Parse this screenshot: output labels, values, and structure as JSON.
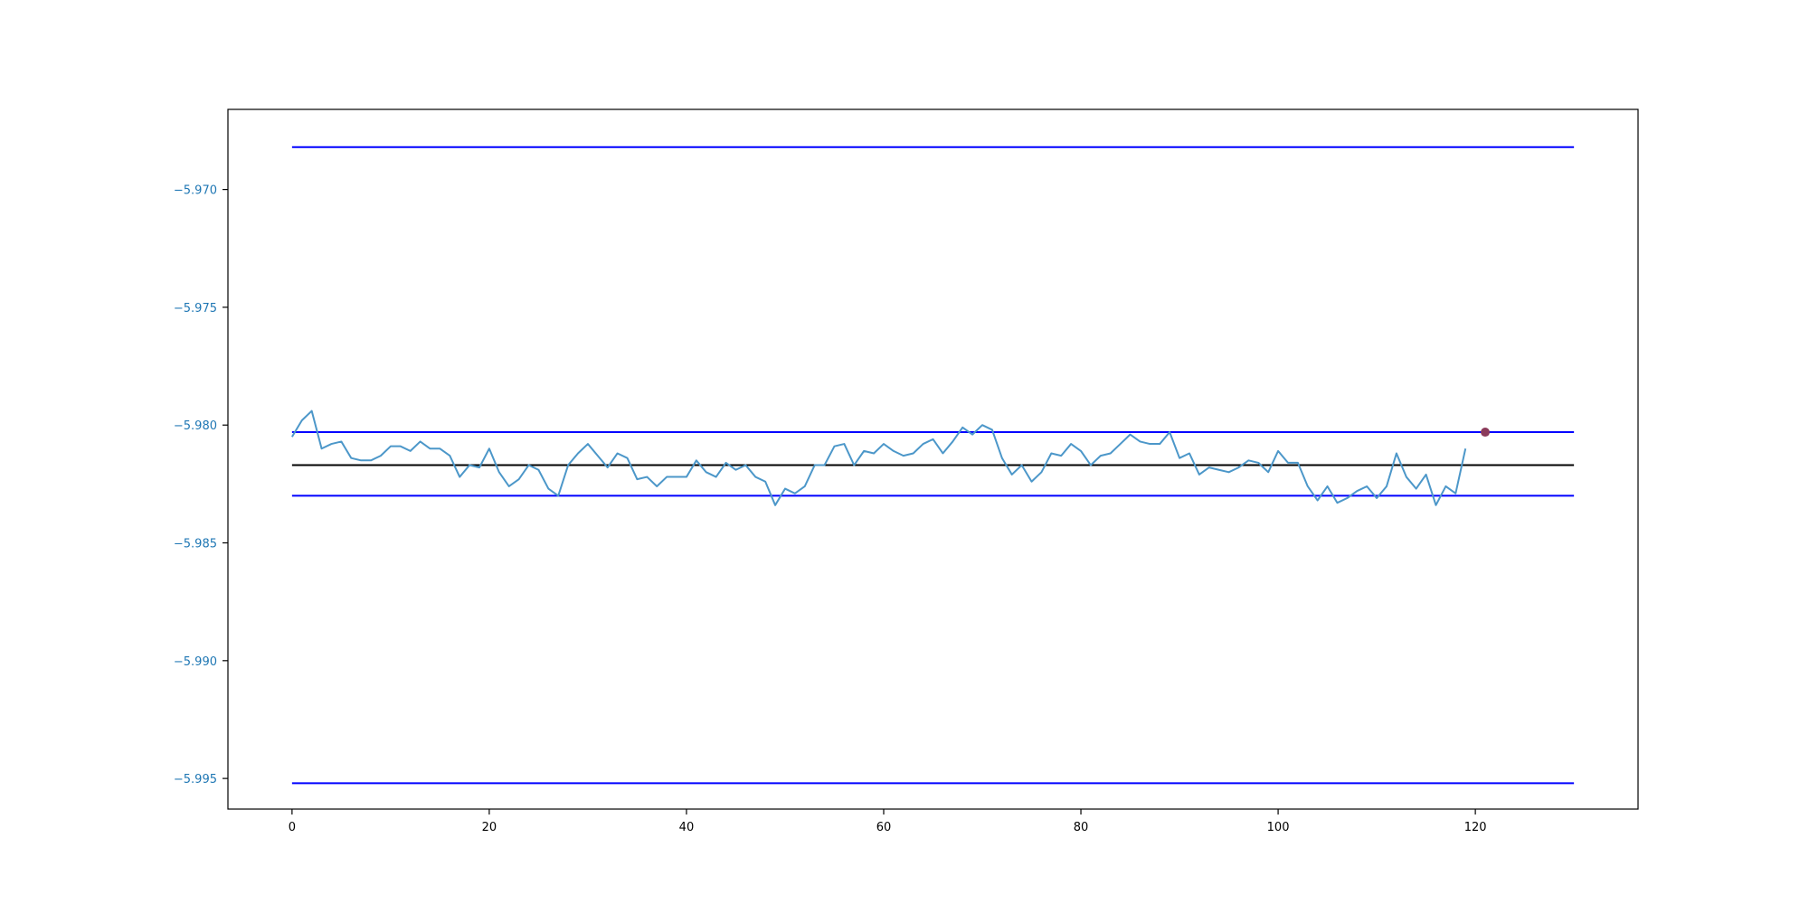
{
  "chart_data": {
    "type": "line",
    "title": "",
    "xlabel": "",
    "ylabel": "",
    "xlim": [
      -6.5,
      136.5
    ],
    "ylim": [
      -5.9963,
      -5.9666
    ],
    "x_ticks": [
      0,
      20,
      40,
      60,
      80,
      100,
      120
    ],
    "x_tick_labels": [
      "0",
      "20",
      "40",
      "60",
      "80",
      "100",
      "120"
    ],
    "y_ticks": [
      -5.97,
      -5.975,
      -5.98,
      -5.985,
      -5.99,
      -5.995
    ],
    "y_tick_labels": [
      "−5.970",
      "−5.975",
      "−5.980",
      "−5.985",
      "−5.990",
      "−5.995"
    ],
    "grid": false,
    "legend": "none",
    "colors": {
      "series": "#4c97c9",
      "limit_lines": "#0000ff",
      "center_line": "#000000",
      "marker": "#8b3a5a",
      "y_tick_text": "#1f77b4",
      "x_tick_text": "#000000"
    },
    "series": [
      {
        "x": [
          0,
          1,
          2,
          3,
          4,
          5,
          6,
          7,
          8,
          9,
          10,
          11,
          12,
          13,
          14,
          15,
          16,
          17,
          18,
          19,
          20,
          21,
          22,
          23,
          24,
          25,
          26,
          27,
          28,
          29,
          30,
          31,
          32,
          33,
          34,
          35,
          36,
          37,
          38,
          39,
          40,
          41,
          42,
          43,
          44,
          45,
          46,
          47,
          48,
          49,
          50,
          51,
          52,
          53,
          54,
          55,
          56,
          57,
          58,
          59,
          60,
          61,
          62,
          63,
          64,
          65,
          66,
          67,
          68,
          69,
          70,
          71,
          72,
          73,
          74,
          75,
          76,
          77,
          78,
          79,
          80,
          81,
          82,
          83,
          84,
          85,
          86,
          87,
          88,
          89,
          90,
          91,
          92,
          93,
          94,
          95,
          96,
          97,
          98,
          99,
          100,
          101,
          102,
          103,
          104,
          105,
          106,
          107,
          108,
          109,
          110,
          111,
          112,
          113,
          114,
          115,
          116,
          117,
          118,
          119
        ],
        "values": [
          -5.9805,
          -5.9798,
          -5.9794,
          -5.981,
          -5.9808,
          -5.9807,
          -5.9814,
          -5.9815,
          -5.9815,
          -5.9813,
          -5.9809,
          -5.9809,
          -5.9811,
          -5.9807,
          -5.981,
          -5.981,
          -5.9813,
          -5.9822,
          -5.9817,
          -5.9818,
          -5.981,
          -5.982,
          -5.9826,
          -5.9823,
          -5.9817,
          -5.9819,
          -5.9827,
          -5.983,
          -5.9817,
          -5.9812,
          -5.9808,
          -5.9813,
          -5.9818,
          -5.9812,
          -5.9814,
          -5.9823,
          -5.9822,
          -5.9826,
          -5.9822,
          -5.9822,
          -5.9822,
          -5.9815,
          -5.982,
          -5.9822,
          -5.9816,
          -5.9819,
          -5.9817,
          -5.9822,
          -5.9824,
          -5.9834,
          -5.9827,
          -5.9829,
          -5.9826,
          -5.9817,
          -5.9817,
          -5.9809,
          -5.9808,
          -5.9817,
          -5.9811,
          -5.9812,
          -5.9808,
          -5.9811,
          -5.9813,
          -5.9812,
          -5.9808,
          -5.9806,
          -5.9812,
          -5.9807,
          -5.9801,
          -5.9804,
          -5.98,
          -5.9802,
          -5.9814,
          -5.9821,
          -5.9817,
          -5.9824,
          -5.982,
          -5.9812,
          -5.9813,
          -5.9808,
          -5.9811,
          -5.9817,
          -5.9813,
          -5.9812,
          -5.9808,
          -5.9804,
          -5.9807,
          -5.9808,
          -5.9808,
          -5.9803,
          -5.9814,
          -5.9812,
          -5.9821,
          -5.9818,
          -5.9819,
          -5.982,
          -5.9818,
          -5.9815,
          -5.9816,
          -5.982,
          -5.9811,
          -5.9816,
          -5.9816,
          -5.9826,
          -5.9832,
          -5.9826,
          -5.9833,
          -5.9831,
          -5.9828,
          -5.9826,
          -5.9831,
          -5.9826,
          -5.9812,
          -5.9822,
          -5.9827,
          -5.9821,
          -5.9834,
          -5.9826,
          -5.9829,
          -5.981
        ]
      }
    ],
    "horizontal_lines": [
      {
        "role": "upper-outer",
        "y": -5.9682,
        "x_range": [
          0,
          130
        ],
        "color": "#0000ff"
      },
      {
        "role": "upper-inner",
        "y": -5.9803,
        "x_range": [
          0,
          130
        ],
        "color": "#0000ff"
      },
      {
        "role": "center",
        "y": -5.9817,
        "x_range": [
          0,
          130
        ],
        "color": "#000000"
      },
      {
        "role": "lower-inner",
        "y": -5.983,
        "x_range": [
          0,
          130
        ],
        "color": "#0000ff"
      },
      {
        "role": "lower-outer",
        "y": -5.9952,
        "x_range": [
          0,
          130
        ],
        "color": "#0000ff"
      }
    ],
    "markers": [
      {
        "x": 121,
        "y": -5.9803,
        "color": "#8b3a5a"
      }
    ]
  }
}
